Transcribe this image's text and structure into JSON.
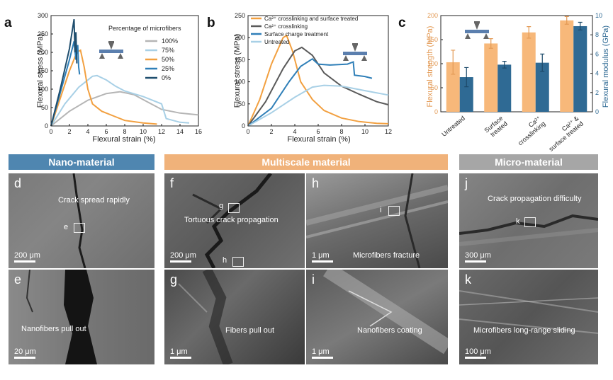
{
  "colors": {
    "blue_dark": "#1f4e6e",
    "blue": "#2f7fb8",
    "blue_light": "#a8d0e6",
    "orange": "#f2a040",
    "orange_light": "#f7b87a",
    "gray": "#b5b5b5",
    "gray_dark": "#5a5a5a",
    "nano": "#4f86b0",
    "multi": "#f0b27a",
    "micro": "#a6a6a6"
  },
  "panel_labels": {
    "a": "a",
    "b": "b",
    "c": "c",
    "d": "d",
    "e": "e",
    "f": "f",
    "g": "g",
    "h": "h",
    "i": "i",
    "j": "j",
    "k": "k"
  },
  "chart_data": [
    {
      "id": "a",
      "type": "line",
      "xlabel": "Flexural strain (%)",
      "ylabel": "Flexural stress (MPa)",
      "xlim": [
        0,
        16
      ],
      "ylim": [
        0,
        300
      ],
      "xticks": [
        "0",
        "2",
        "4",
        "6",
        "8",
        "10",
        "12",
        "14",
        "16"
      ],
      "yticks": [
        "0",
        "50",
        "100",
        "150",
        "200",
        "250",
        "300"
      ],
      "legend_title": "Percentage of microfibers",
      "series": [
        {
          "name": "100%",
          "color": "#b5b5b5",
          "points": [
            [
              0,
              0
            ],
            [
              2,
              40
            ],
            [
              4,
              70
            ],
            [
              6,
              88
            ],
            [
              7.5,
              93
            ],
            [
              9,
              85
            ],
            [
              10.5,
              65
            ],
            [
              12,
              45
            ],
            [
              14,
              35
            ],
            [
              16,
              30
            ]
          ]
        },
        {
          "name": "75%",
          "color": "#a8d0e6",
          "points": [
            [
              0,
              0
            ],
            [
              1.5,
              60
            ],
            [
              3,
              105
            ],
            [
              4.5,
              135
            ],
            [
              5,
              137
            ],
            [
              6,
              125
            ],
            [
              7,
              108
            ],
            [
              8,
              95
            ],
            [
              10,
              80
            ],
            [
              12,
              60
            ],
            [
              12.5,
              20
            ],
            [
              14,
              10
            ],
            [
              15,
              8
            ]
          ]
        },
        {
          "name": "50%",
          "color": "#f2a040",
          "points": [
            [
              0,
              0
            ],
            [
              1,
              75
            ],
            [
              2,
              150
            ],
            [
              2.8,
              200
            ],
            [
              3.2,
              206
            ],
            [
              3.6,
              160
            ],
            [
              4,
              100
            ],
            [
              4.5,
              60
            ],
            [
              5.5,
              40
            ],
            [
              7,
              25
            ],
            [
              8,
              15
            ],
            [
              10,
              8
            ],
            [
              11.5,
              5
            ]
          ]
        },
        {
          "name": "25%",
          "color": "#2f7fb8",
          "points": [
            [
              0,
              0
            ],
            [
              1,
              90
            ],
            [
              2,
              180
            ],
            [
              2.5,
              230
            ],
            [
              2.7,
              180
            ],
            [
              2.9,
              220
            ],
            [
              3,
              160
            ],
            [
              3.1,
              140
            ]
          ]
        },
        {
          "name": "0%",
          "color": "#1f4e6e",
          "points": [
            [
              0,
              0
            ],
            [
              1,
              100
            ],
            [
              2,
              210
            ],
            [
              2.5,
              290
            ],
            [
              2.6,
              200
            ],
            [
              2.7,
              255
            ],
            [
              2.8,
              170
            ]
          ]
        }
      ]
    },
    {
      "id": "b",
      "type": "line",
      "xlabel": "Flexural strain (%)",
      "ylabel": "Flexural stress (MPa)",
      "xlim": [
        0,
        12
      ],
      "ylim": [
        0,
        250
      ],
      "xticks": [
        "0",
        "2",
        "4",
        "6",
        "8",
        "10",
        "12"
      ],
      "yticks": [
        "0",
        "50",
        "100",
        "150",
        "200",
        "250"
      ],
      "series": [
        {
          "name": "Ca²⁺ crosslinking and surface treated",
          "color": "#f2a040",
          "points": [
            [
              0,
              0
            ],
            [
              1,
              60
            ],
            [
              2,
              140
            ],
            [
              3,
              200
            ],
            [
              3.3,
              205
            ],
            [
              3.8,
              170
            ],
            [
              4.5,
              100
            ],
            [
              5.5,
              60
            ],
            [
              6.5,
              35
            ],
            [
              8,
              18
            ],
            [
              9.5,
              10
            ],
            [
              11,
              6
            ],
            [
              12,
              5
            ]
          ]
        },
        {
          "name": "Ca²⁺ crosslinking",
          "color": "#5a5a5a",
          "points": [
            [
              0,
              0
            ],
            [
              1.5,
              55
            ],
            [
              3,
              130
            ],
            [
              4,
              170
            ],
            [
              4.6,
              178
            ],
            [
              5.5,
              160
            ],
            [
              6.5,
              120
            ],
            [
              8,
              90
            ],
            [
              9.5,
              72
            ],
            [
              11,
              55
            ],
            [
              12,
              48
            ]
          ]
        },
        {
          "name": "Surface charge treatment",
          "color": "#2f7fb8",
          "points": [
            [
              0,
              0
            ],
            [
              2,
              40
            ],
            [
              3.5,
              100
            ],
            [
              4.5,
              135
            ],
            [
              5.5,
              152
            ],
            [
              6,
              140
            ],
            [
              7,
              138
            ],
            [
              8.5,
              140
            ],
            [
              9,
              145
            ],
            [
              9.1,
              115
            ],
            [
              10,
              112
            ],
            [
              10.6,
              108
            ]
          ]
        },
        {
          "name": "Untreated",
          "color": "#a8d0e6",
          "points": [
            [
              0,
              0
            ],
            [
              2,
              30
            ],
            [
              4,
              65
            ],
            [
              5.5,
              88
            ],
            [
              6.5,
              92
            ],
            [
              8,
              90
            ],
            [
              10,
              80
            ],
            [
              12,
              70
            ]
          ]
        }
      ]
    },
    {
      "id": "c",
      "type": "bar",
      "categories": [
        "Untreated",
        "Surface\ntreated",
        "Ca²⁺\ncrosslinking",
        "Ca²⁺ &\nsurface treated"
      ],
      "ylabel": "Flexural strength (MPa)",
      "y2label": "Flexural modulus (GPa)",
      "ylim": [
        0,
        200
      ],
      "y2lim": [
        0,
        10
      ],
      "yticks": [
        "0",
        "50",
        "100",
        "150",
        "200"
      ],
      "y2ticks": [
        "0",
        "2",
        "4",
        "6",
        "8",
        "10"
      ],
      "series": [
        {
          "name": "Flexural strength",
          "axis": "left",
          "color": "#f7b87a",
          "values": [
            103,
            142,
            165,
            190
          ],
          "errors": [
            25,
            10,
            12,
            8
          ]
        },
        {
          "name": "Flexural modulus",
          "axis": "right",
          "color": "#2f6a94",
          "values": [
            3.6,
            4.9,
            5.1,
            8.9
          ],
          "errors": [
            1.0,
            0.35,
            0.9,
            0.4
          ]
        }
      ]
    }
  ],
  "banners": {
    "nano": "Nano-material",
    "multi": "Multiscale material",
    "micro": "Micro-material"
  },
  "panels": {
    "d": {
      "caption": "Crack spread rapidly",
      "scale": "200 μm",
      "box": "e"
    },
    "e": {
      "caption": "Nanofibers pull out",
      "scale": "20 μm"
    },
    "f": {
      "caption": "Tortuous crack propagation",
      "scale": "200 μm",
      "box1": "g",
      "box2": "h"
    },
    "g": {
      "caption": "Fibers pull out",
      "scale": "1 μm"
    },
    "h": {
      "caption": "Microfibers fracture",
      "scale": "1 μm",
      "box": "i"
    },
    "i": {
      "caption": "Nanofibers coating",
      "scale": "1 μm"
    },
    "j": {
      "caption": "Crack propagation difficulty",
      "scale": "300 μm",
      "box": "k"
    },
    "k": {
      "caption": "Microfibers long-range sliding",
      "scale": "100 μm"
    }
  }
}
